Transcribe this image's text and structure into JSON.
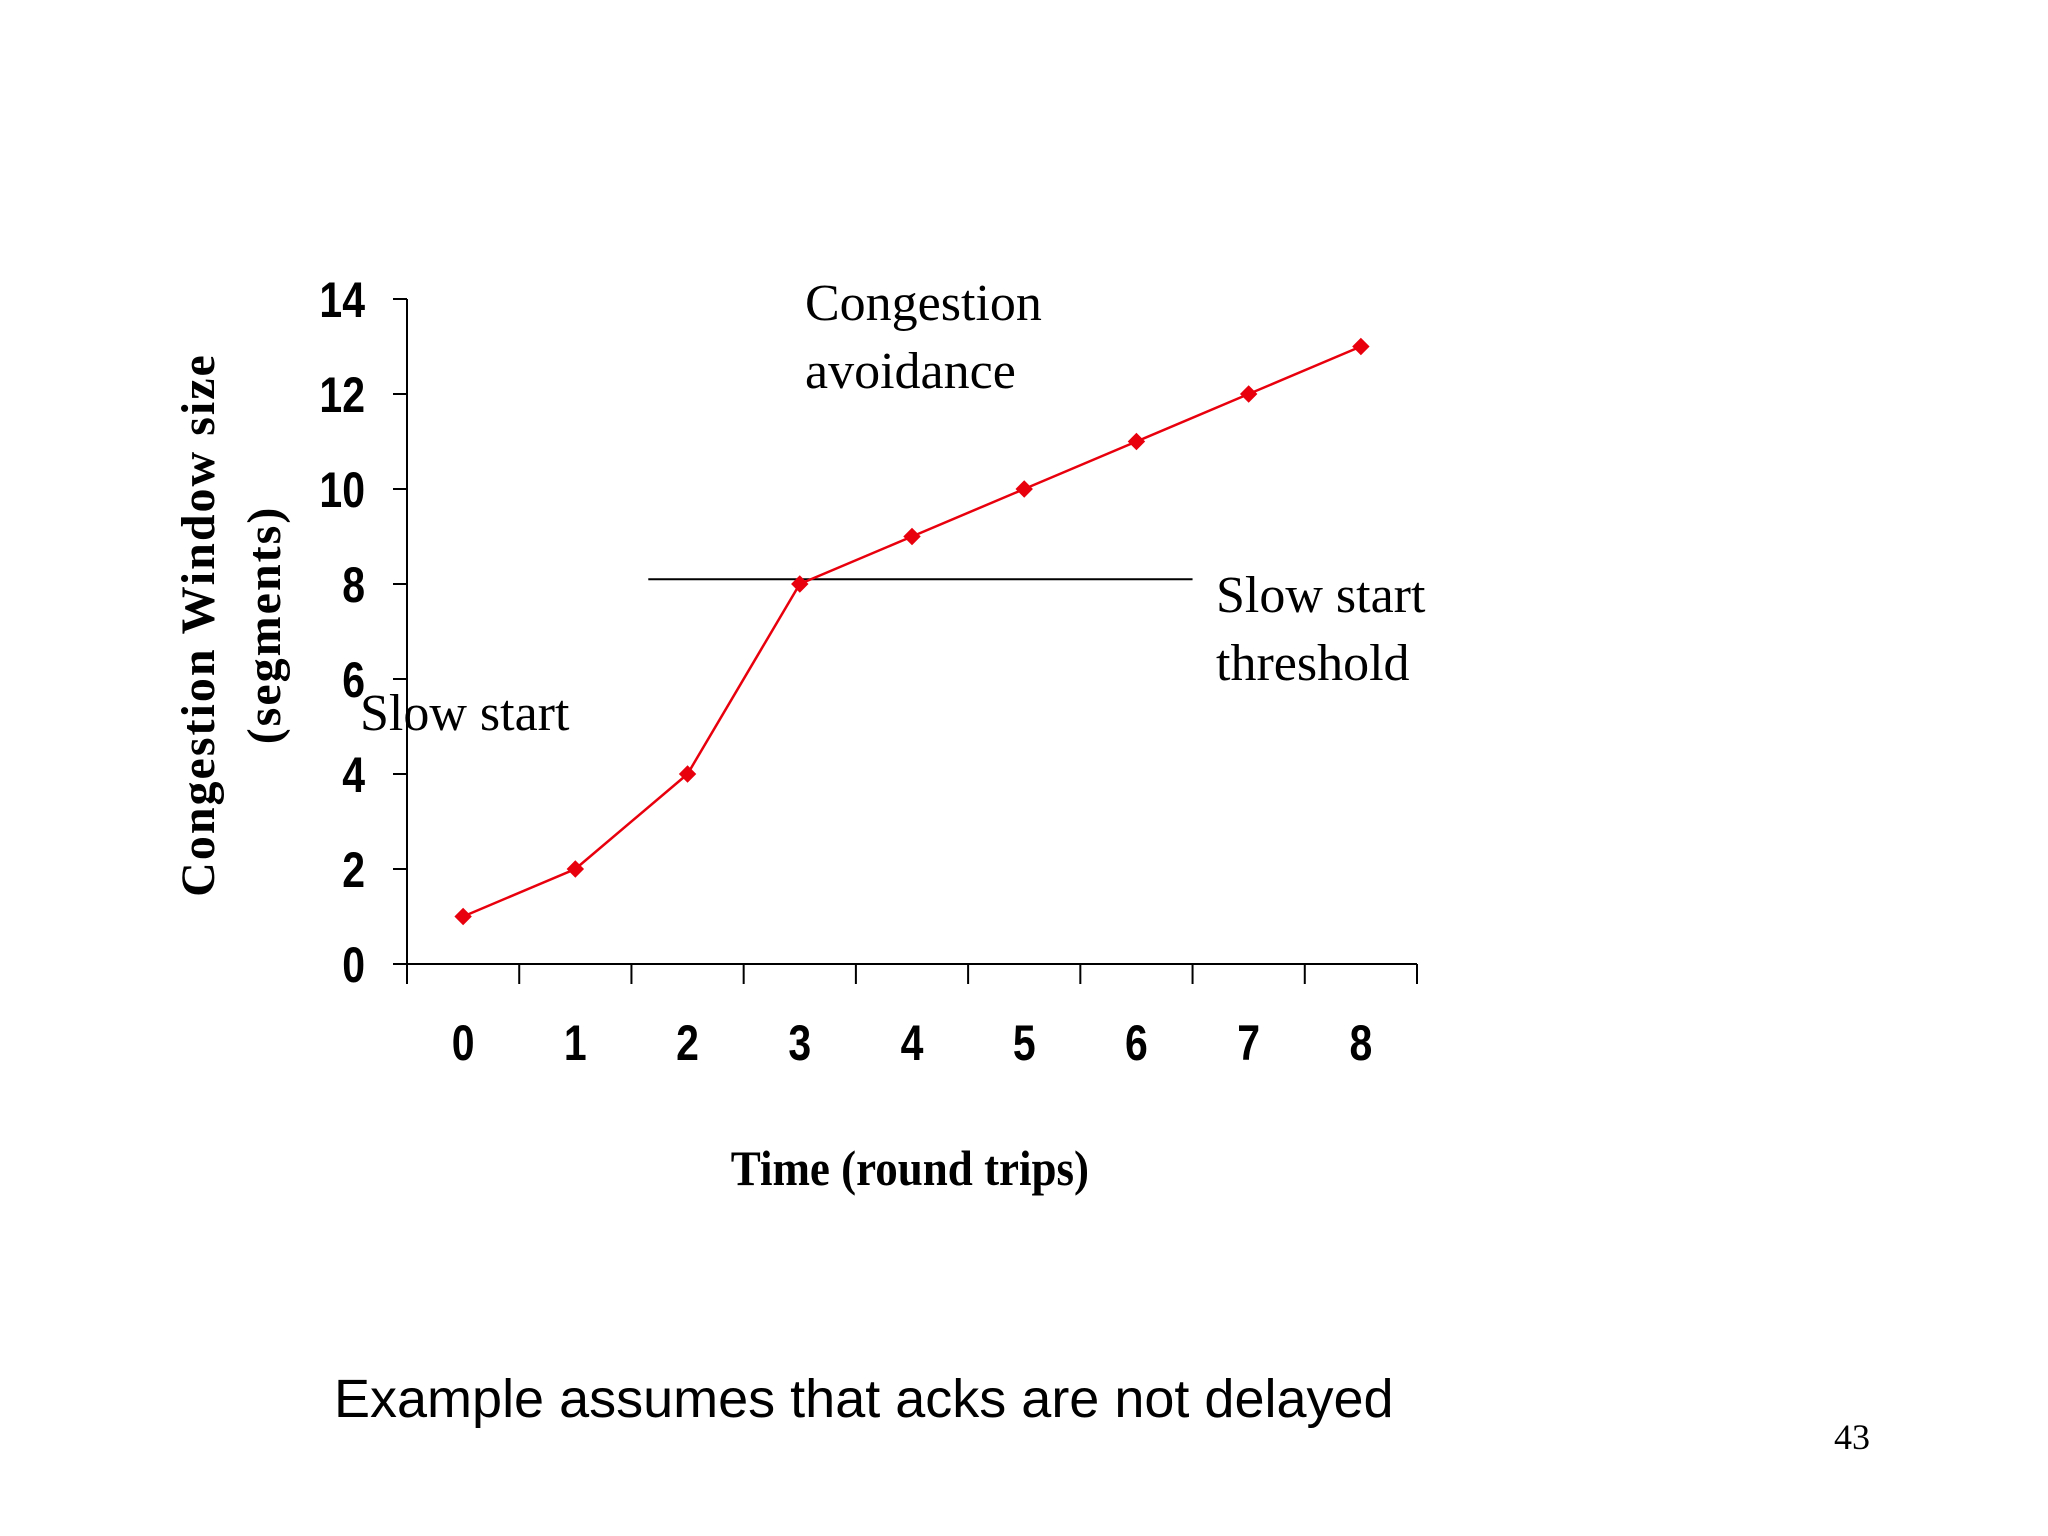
{
  "chart_data": {
    "type": "line",
    "title": "",
    "xlabel": "Time (round trips)",
    "ylabel_line1": "Congestion Window size",
    "ylabel_line2": "(segments)",
    "x": [
      0,
      1,
      2,
      3,
      4,
      5,
      6,
      7,
      8
    ],
    "x_tick_labels": [
      "0",
      "1",
      "2",
      "3",
      "4",
      "5",
      "6",
      "7",
      "8"
    ],
    "y_ticks": [
      0,
      2,
      4,
      6,
      8,
      10,
      12,
      14
    ],
    "y_tick_labels": [
      "0",
      "2",
      "4",
      "6",
      "8",
      "10",
      "12",
      "14"
    ],
    "ylim": [
      0,
      14
    ],
    "xlim": [
      -0.5,
      8.5
    ],
    "series": [
      {
        "name": "Congestion window",
        "color": "#e8000d",
        "marker": "diamond",
        "values": [
          1,
          2,
          4,
          8,
          9,
          10,
          11,
          12,
          13
        ]
      }
    ],
    "threshold": {
      "value": 8.1,
      "x_start": 1.65,
      "x_end": 6.5,
      "color": "#000000",
      "label_line1": "Slow start",
      "label_line2": "threshold"
    },
    "annotations": {
      "slow_start": "Slow start",
      "congestion_avoidance_line1": "Congestion",
      "congestion_avoidance_line2": "avoidance"
    }
  },
  "footnote": "Example assumes that acks are not delayed",
  "slide_number": "43"
}
